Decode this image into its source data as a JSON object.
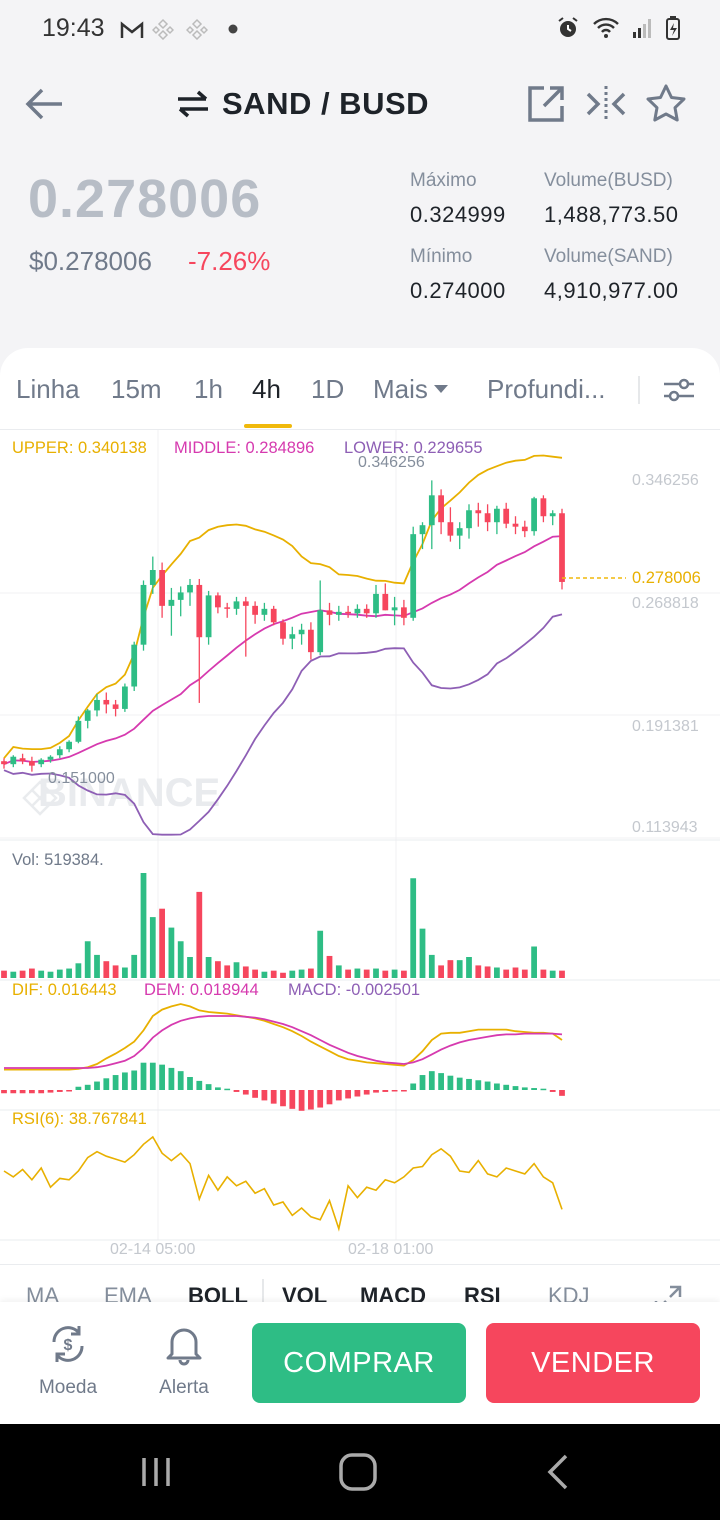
{
  "status": {
    "time": "19:43"
  },
  "header": {
    "pair": "SAND / BUSD"
  },
  "price": {
    "last": "0.278006",
    "fiat": "$0.278006",
    "change": "-7.26%",
    "high_label": "Máximo",
    "high": "0.324999",
    "low_label": "Mínimo",
    "low": "0.274000",
    "vol_busd_label": "Volume(BUSD)",
    "vol_busd": "1,488,773.50",
    "vol_sand_label": "Volume(SAND)",
    "vol_sand": "4,910,977.00"
  },
  "tabs": [
    "Linha",
    "15m",
    "1h",
    "4h",
    "1D",
    "Mais",
    "Profundi..."
  ],
  "active_tab": "4h",
  "chart": {
    "boll_upper": "UPPER: 0.340138",
    "boll_middle": "MIDDLE: 0.284896",
    "boll_lower": "LOWER: 0.229655",
    "max_label": "0.346256",
    "min_label": "0.151000",
    "axis_top": "0.346256",
    "axis_2": "0.268818",
    "axis_3": "0.191381",
    "axis_4": "0.113943",
    "current_price": "0.278006",
    "watermark": "BINANCE",
    "vol": "Vol: 519384.",
    "dif": "DIF: 0.016443",
    "dem": "DEM: 0.018944",
    "macd": "MACD: -0.002501",
    "rsi": "RSI(6): 38.767841",
    "date_1": "02-14 05:00",
    "date_2": "02-18 01:00"
  },
  "indicator_tabs": [
    "MA",
    "EMA",
    "BOLL",
    "VOL",
    "MACD",
    "RSI",
    "KDJ"
  ],
  "bottom": {
    "coin": "Moeda",
    "alert": "Alerta",
    "buy": "COMPRAR",
    "sell": "VENDER"
  },
  "colors": {
    "up": "#2ebd85",
    "down": "#f6465d",
    "accent": "#f0b90b"
  },
  "chart_data": {
    "type": "candlestick",
    "pair": "SAND/BUSD",
    "interval": "4h",
    "y_axis_ticks": [
      0.346256,
      0.268818,
      0.191381,
      0.113943
    ],
    "current_price": 0.278006,
    "highest_label": 0.346256,
    "lowest_label": 0.151,
    "bollinger": {
      "upper": 0.340138,
      "middle": 0.284896,
      "lower": 0.229655
    },
    "volume_last": 519384,
    "macd": {
      "dif": 0.016443,
      "dem": 0.018944,
      "macd": -0.002501
    },
    "rsi6": 38.767841,
    "x_tick_labels": [
      "02-14 05:00",
      "02-18 01:00"
    ],
    "candles": [
      [
        0.158,
        0.16,
        0.153,
        0.156
      ],
      [
        0.156,
        0.162,
        0.154,
        0.161
      ],
      [
        0.16,
        0.163,
        0.156,
        0.158
      ],
      [
        0.158,
        0.161,
        0.151,
        0.155
      ],
      [
        0.156,
        0.16,
        0.154,
        0.159
      ],
      [
        0.159,
        0.162,
        0.157,
        0.161
      ],
      [
        0.162,
        0.168,
        0.16,
        0.166
      ],
      [
        0.166,
        0.172,
        0.164,
        0.171
      ],
      [
        0.171,
        0.188,
        0.17,
        0.185
      ],
      [
        0.185,
        0.193,
        0.18,
        0.192
      ],
      [
        0.192,
        0.203,
        0.188,
        0.199
      ],
      [
        0.199,
        0.204,
        0.19,
        0.196
      ],
      [
        0.196,
        0.199,
        0.188,
        0.193
      ],
      [
        0.193,
        0.21,
        0.191,
        0.208
      ],
      [
        0.208,
        0.238,
        0.205,
        0.236
      ],
      [
        0.236,
        0.279,
        0.232,
        0.276
      ],
      [
        0.276,
        0.295,
        0.27,
        0.286
      ],
      [
        0.286,
        0.291,
        0.254,
        0.262
      ],
      [
        0.262,
        0.274,
        0.242,
        0.266
      ],
      [
        0.266,
        0.275,
        0.255,
        0.271
      ],
      [
        0.271,
        0.28,
        0.262,
        0.276
      ],
      [
        0.276,
        0.28,
        0.197,
        0.241
      ],
      [
        0.241,
        0.272,
        0.236,
        0.269
      ],
      [
        0.269,
        0.271,
        0.257,
        0.261
      ],
      [
        0.261,
        0.264,
        0.254,
        0.26
      ],
      [
        0.26,
        0.268,
        0.256,
        0.265
      ],
      [
        0.265,
        0.268,
        0.228,
        0.262
      ],
      [
        0.262,
        0.265,
        0.25,
        0.256
      ],
      [
        0.256,
        0.264,
        0.252,
        0.26
      ],
      [
        0.26,
        0.262,
        0.249,
        0.251
      ],
      [
        0.251,
        0.253,
        0.236,
        0.24
      ],
      [
        0.24,
        0.248,
        0.233,
        0.243
      ],
      [
        0.243,
        0.25,
        0.236,
        0.246
      ],
      [
        0.246,
        0.251,
        0.226,
        0.231
      ],
      [
        0.231,
        0.279,
        0.229,
        0.259
      ],
      [
        0.259,
        0.264,
        0.249,
        0.256
      ],
      [
        0.256,
        0.262,
        0.252,
        0.258
      ],
      [
        0.258,
        0.262,
        0.254,
        0.257
      ],
      [
        0.257,
        0.263,
        0.254,
        0.26
      ],
      [
        0.26,
        0.263,
        0.254,
        0.257
      ],
      [
        0.257,
        0.276,
        0.254,
        0.27
      ],
      [
        0.27,
        0.277,
        0.259,
        0.259
      ],
      [
        0.259,
        0.268,
        0.249,
        0.261
      ],
      [
        0.261,
        0.266,
        0.249,
        0.254
      ],
      [
        0.254,
        0.315,
        0.252,
        0.31
      ],
      [
        0.31,
        0.318,
        0.3,
        0.316
      ],
      [
        0.316,
        0.346,
        0.3,
        0.336
      ],
      [
        0.336,
        0.34,
        0.31,
        0.318
      ],
      [
        0.318,
        0.328,
        0.305,
        0.309
      ],
      [
        0.309,
        0.318,
        0.3,
        0.314
      ],
      [
        0.314,
        0.33,
        0.307,
        0.326
      ],
      [
        0.326,
        0.331,
        0.315,
        0.324
      ],
      [
        0.324,
        0.33,
        0.312,
        0.318
      ],
      [
        0.318,
        0.329,
        0.31,
        0.327
      ],
      [
        0.327,
        0.331,
        0.314,
        0.317
      ],
      [
        0.317,
        0.322,
        0.31,
        0.315
      ],
      [
        0.315,
        0.319,
        0.308,
        0.312
      ],
      [
        0.312,
        0.335,
        0.309,
        0.334
      ],
      [
        0.334,
        0.336,
        0.318,
        0.322
      ],
      [
        0.322,
        0.326,
        0.316,
        0.324
      ],
      [
        0.324,
        0.327,
        0.273,
        0.278
      ]
    ],
    "volumes": [
      0.07,
      0.06,
      0.07,
      0.09,
      0.07,
      0.06,
      0.08,
      0.09,
      0.14,
      0.35,
      0.22,
      0.16,
      0.12,
      0.1,
      0.22,
      1.0,
      0.58,
      0.66,
      0.48,
      0.35,
      0.2,
      0.82,
      0.2,
      0.16,
      0.12,
      0.15,
      0.11,
      0.08,
      0.06,
      0.07,
      0.05,
      0.07,
      0.08,
      0.09,
      0.45,
      0.21,
      0.12,
      0.08,
      0.09,
      0.08,
      0.09,
      0.07,
      0.08,
      0.07,
      0.95,
      0.47,
      0.22,
      0.12,
      0.17,
      0.17,
      0.2,
      0.12,
      0.11,
      0.1,
      0.08,
      0.1,
      0.08,
      0.3,
      0.08,
      0.07,
      0.07
    ],
    "macd_hist": [
      -0.5,
      -0.5,
      -0.5,
      -0.5,
      -0.5,
      -0.4,
      -0.3,
      -0.1,
      0.5,
      0.8,
      1.3,
      1.8,
      2.3,
      2.7,
      3.0,
      4.2,
      4.2,
      3.9,
      3.4,
      2.9,
      2.0,
      1.4,
      0.9,
      0.4,
      0.2,
      -0.3,
      -0.7,
      -1.2,
      -1.6,
      -2.1,
      -2.5,
      -2.9,
      -3.2,
      -3.0,
      -2.7,
      -2.2,
      -1.6,
      -1.3,
      -1.0,
      -0.7,
      -0.4,
      -0.3,
      -0.2,
      -0.1,
      1.0,
      2.3,
      2.9,
      2.6,
      2.2,
      1.9,
      1.7,
      1.5,
      1.3,
      1.0,
      0.8,
      0.6,
      0.4,
      0.3,
      0.2,
      -0.3,
      -0.9
    ],
    "rsi_series": [
      48,
      44,
      49,
      42,
      50,
      37,
      43,
      42,
      48,
      57,
      61,
      58,
      56,
      54,
      59,
      66,
      71,
      60,
      55,
      60,
      53,
      29,
      45,
      35,
      44,
      38,
      41,
      33,
      36,
      25,
      27,
      18,
      23,
      17,
      15,
      28,
      9,
      38,
      30,
      37,
      35,
      42,
      40,
      44,
      50,
      51,
      59,
      63,
      58,
      48,
      47,
      55,
      46,
      44,
      50,
      48,
      46,
      53,
      44,
      40,
      22
    ],
    "dif_series": [
      0.13,
      0.13,
      0.13,
      0.13,
      0.13,
      0.13,
      0.13,
      0.13,
      0.14,
      0.16,
      0.2,
      0.27,
      0.33,
      0.4,
      0.48,
      0.62,
      0.8,
      0.88,
      0.92,
      0.95,
      0.92,
      0.87,
      0.85,
      0.84,
      0.83,
      0.81,
      0.79,
      0.77,
      0.74,
      0.7,
      0.66,
      0.61,
      0.55,
      0.48,
      0.42,
      0.36,
      0.3,
      0.26,
      0.24,
      0.22,
      0.21,
      0.2,
      0.19,
      0.18,
      0.25,
      0.36,
      0.5,
      0.58,
      0.59,
      0.59,
      0.61,
      0.63,
      0.63,
      0.63,
      0.63,
      0.61,
      0.6,
      0.59,
      0.59,
      0.58,
      0.5
    ],
    "dem_series": [
      0.15,
      0.15,
      0.15,
      0.15,
      0.15,
      0.15,
      0.15,
      0.15,
      0.15,
      0.15,
      0.16,
      0.18,
      0.21,
      0.24,
      0.3,
      0.4,
      0.53,
      0.62,
      0.69,
      0.74,
      0.77,
      0.79,
      0.8,
      0.8,
      0.8,
      0.8,
      0.79,
      0.78,
      0.76,
      0.73,
      0.7,
      0.66,
      0.61,
      0.56,
      0.5,
      0.44,
      0.39,
      0.34,
      0.3,
      0.27,
      0.24,
      0.22,
      0.21,
      0.2,
      0.22,
      0.26,
      0.32,
      0.38,
      0.43,
      0.47,
      0.5,
      0.52,
      0.54,
      0.56,
      0.57,
      0.57,
      0.58,
      0.58,
      0.58,
      0.58,
      0.57
    ]
  }
}
